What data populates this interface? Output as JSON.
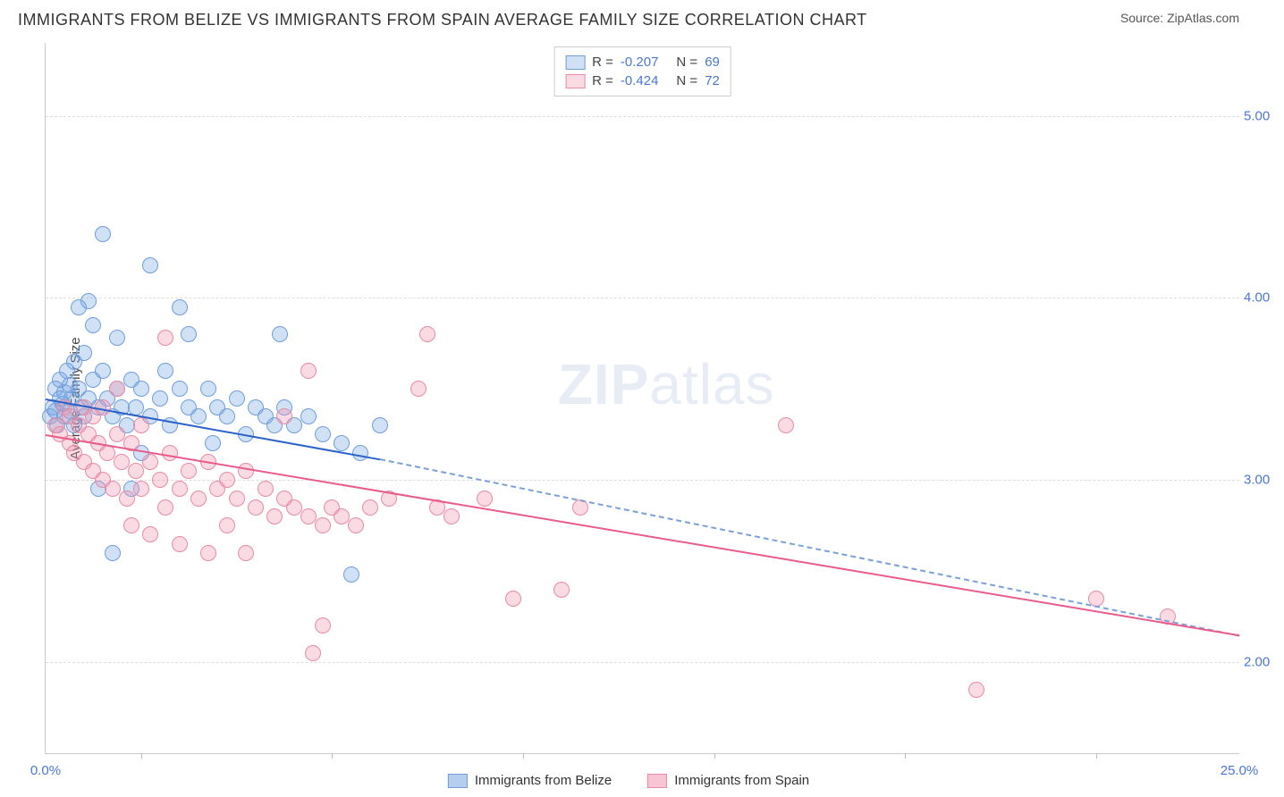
{
  "title": "IMMIGRANTS FROM BELIZE VS IMMIGRANTS FROM SPAIN AVERAGE FAMILY SIZE CORRELATION CHART",
  "source": "Source: ZipAtlas.com",
  "watermark_a": "ZIP",
  "watermark_b": "atlas",
  "chart": {
    "type": "scatter",
    "background_color": "#ffffff",
    "grid_color": "#dddddd",
    "axis_color": "#cccccc",
    "tick_font_color": "#4a76d4",
    "label_font_color": "#444444",
    "ylabel": "Average Family Size",
    "xmin": 0.0,
    "xmax": 25.0,
    "ymin": 1.5,
    "ymax": 5.4,
    "yticks": [
      2.0,
      3.0,
      4.0,
      5.0
    ],
    "ytick_labels": [
      "2.00",
      "3.00",
      "4.00",
      "5.00"
    ],
    "xticks_minor": [
      2.0,
      6.0,
      10.0,
      14.0,
      18.0,
      22.0
    ],
    "xticks_labeled": [
      {
        "v": 0.0,
        "label": "0.0%"
      },
      {
        "v": 25.0,
        "label": "25.0%"
      }
    ],
    "point_radius": 9,
    "series": [
      {
        "name": "Immigrants from Belize",
        "fill": "rgba(120,165,225,0.35)",
        "stroke": "#6f9edb",
        "R": "-0.207",
        "N": "69",
        "trend": {
          "x1": 0.0,
          "y1": 3.45,
          "x2": 7.0,
          "y2": 3.12,
          "color": "#2b62c9",
          "dash": false
        },
        "trend_ext": {
          "x1": 7.0,
          "y1": 3.12,
          "x2": 25.0,
          "y2": 2.15,
          "color": "#7ba0d8",
          "dash": true
        },
        "points": [
          [
            0.1,
            3.35
          ],
          [
            0.15,
            3.4
          ],
          [
            0.2,
            3.38
          ],
          [
            0.2,
            3.5
          ],
          [
            0.25,
            3.3
          ],
          [
            0.3,
            3.45
          ],
          [
            0.3,
            3.55
          ],
          [
            0.35,
            3.42
          ],
          [
            0.4,
            3.48
          ],
          [
            0.4,
            3.35
          ],
          [
            0.45,
            3.6
          ],
          [
            0.5,
            3.38
          ],
          [
            0.5,
            3.52
          ],
          [
            0.55,
            3.45
          ],
          [
            0.6,
            3.3
          ],
          [
            0.6,
            3.65
          ],
          [
            0.7,
            3.5
          ],
          [
            0.7,
            3.95
          ],
          [
            0.75,
            3.4
          ],
          [
            0.8,
            3.35
          ],
          [
            0.8,
            3.7
          ],
          [
            0.9,
            3.45
          ],
          [
            0.9,
            3.98
          ],
          [
            1.0,
            3.55
          ],
          [
            1.0,
            3.85
          ],
          [
            1.1,
            3.4
          ],
          [
            1.1,
            2.95
          ],
          [
            1.2,
            3.6
          ],
          [
            1.2,
            4.35
          ],
          [
            1.3,
            3.45
          ],
          [
            1.4,
            3.35
          ],
          [
            1.4,
            2.6
          ],
          [
            1.5,
            3.5
          ],
          [
            1.5,
            3.78
          ],
          [
            1.6,
            3.4
          ],
          [
            1.7,
            3.3
          ],
          [
            1.8,
            3.55
          ],
          [
            1.8,
            2.95
          ],
          [
            1.9,
            3.4
          ],
          [
            2.0,
            3.5
          ],
          [
            2.0,
            3.15
          ],
          [
            2.2,
            3.35
          ],
          [
            2.2,
            4.18
          ],
          [
            2.4,
            3.45
          ],
          [
            2.5,
            3.6
          ],
          [
            2.6,
            3.3
          ],
          [
            2.8,
            3.5
          ],
          [
            2.8,
            3.95
          ],
          [
            3.0,
            3.4
          ],
          [
            3.0,
            3.8
          ],
          [
            3.2,
            3.35
          ],
          [
            3.4,
            3.5
          ],
          [
            3.5,
            3.2
          ],
          [
            3.6,
            3.4
          ],
          [
            3.8,
            3.35
          ],
          [
            4.0,
            3.45
          ],
          [
            4.2,
            3.25
          ],
          [
            4.4,
            3.4
          ],
          [
            4.6,
            3.35
          ],
          [
            4.8,
            3.3
          ],
          [
            4.9,
            3.8
          ],
          [
            5.0,
            3.4
          ],
          [
            5.2,
            3.3
          ],
          [
            5.5,
            3.35
          ],
          [
            5.8,
            3.25
          ],
          [
            6.2,
            3.2
          ],
          [
            6.4,
            2.48
          ],
          [
            6.6,
            3.15
          ],
          [
            7.0,
            3.3
          ]
        ]
      },
      {
        "name": "Immigrants from Spain",
        "fill": "rgba(240,150,175,0.35)",
        "stroke": "#e88ba5",
        "R": "-0.424",
        "N": "72",
        "trend": {
          "x1": 0.0,
          "y1": 3.25,
          "x2": 25.0,
          "y2": 2.15,
          "color": "#e85c8b",
          "dash": false
        },
        "points": [
          [
            0.2,
            3.3
          ],
          [
            0.3,
            3.25
          ],
          [
            0.4,
            3.4
          ],
          [
            0.5,
            3.2
          ],
          [
            0.5,
            3.35
          ],
          [
            0.6,
            3.15
          ],
          [
            0.7,
            3.3
          ],
          [
            0.8,
            3.1
          ],
          [
            0.8,
            3.4
          ],
          [
            0.9,
            3.25
          ],
          [
            1.0,
            3.05
          ],
          [
            1.0,
            3.35
          ],
          [
            1.1,
            3.2
          ],
          [
            1.2,
            3.0
          ],
          [
            1.2,
            3.4
          ],
          [
            1.3,
            3.15
          ],
          [
            1.4,
            2.95
          ],
          [
            1.5,
            3.25
          ],
          [
            1.5,
            3.5
          ],
          [
            1.6,
            3.1
          ],
          [
            1.7,
            2.9
          ],
          [
            1.8,
            3.2
          ],
          [
            1.8,
            2.75
          ],
          [
            1.9,
            3.05
          ],
          [
            2.0,
            2.95
          ],
          [
            2.0,
            3.3
          ],
          [
            2.2,
            3.1
          ],
          [
            2.2,
            2.7
          ],
          [
            2.4,
            3.0
          ],
          [
            2.5,
            2.85
          ],
          [
            2.5,
            3.78
          ],
          [
            2.6,
            3.15
          ],
          [
            2.8,
            2.95
          ],
          [
            2.8,
            2.65
          ],
          [
            3.0,
            3.05
          ],
          [
            3.2,
            2.9
          ],
          [
            3.4,
            3.1
          ],
          [
            3.4,
            2.6
          ],
          [
            3.6,
            2.95
          ],
          [
            3.8,
            3.0
          ],
          [
            3.8,
            2.75
          ],
          [
            4.0,
            2.9
          ],
          [
            4.2,
            3.05
          ],
          [
            4.2,
            2.6
          ],
          [
            4.4,
            2.85
          ],
          [
            4.6,
            2.95
          ],
          [
            4.8,
            2.8
          ],
          [
            5.0,
            2.9
          ],
          [
            5.0,
            3.35
          ],
          [
            5.2,
            2.85
          ],
          [
            5.5,
            2.8
          ],
          [
            5.5,
            3.6
          ],
          [
            5.6,
            2.05
          ],
          [
            5.8,
            2.2
          ],
          [
            5.8,
            2.75
          ],
          [
            6.0,
            2.85
          ],
          [
            6.2,
            2.8
          ],
          [
            6.5,
            2.75
          ],
          [
            6.8,
            2.85
          ],
          [
            7.2,
            2.9
          ],
          [
            7.8,
            3.5
          ],
          [
            8.0,
            3.8
          ],
          [
            8.2,
            2.85
          ],
          [
            8.5,
            2.8
          ],
          [
            9.2,
            2.9
          ],
          [
            9.8,
            2.35
          ],
          [
            10.8,
            2.4
          ],
          [
            11.2,
            2.85
          ],
          [
            15.5,
            3.3
          ],
          [
            19.5,
            1.85
          ],
          [
            22.0,
            2.35
          ],
          [
            23.5,
            2.25
          ]
        ]
      }
    ],
    "legend_bottom": [
      {
        "swatch_fill": "rgba(120,165,225,0.55)",
        "swatch_stroke": "#6f9edb",
        "label": "Immigrants from Belize"
      },
      {
        "swatch_fill": "rgba(240,150,175,0.55)",
        "swatch_stroke": "#e88ba5",
        "label": "Immigrants from Spain"
      }
    ]
  }
}
